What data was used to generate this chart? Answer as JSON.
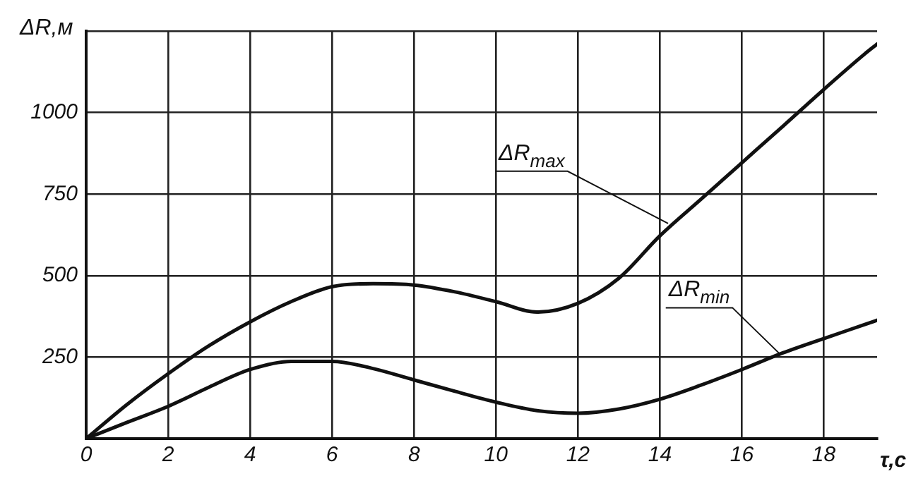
{
  "chart_data": {
    "type": "line",
    "xlabel": "τ,с",
    "ylabel": "ΔR,м",
    "xlim": [
      0,
      19.3
    ],
    "xticks": [
      0,
      2,
      4,
      6,
      8,
      10,
      12,
      14,
      16,
      18
    ],
    "ylim": [
      0,
      1250
    ],
    "yticks": [
      250,
      500,
      750,
      1000,
      {
        "value": 1250,
        "label": null
      }
    ],
    "grid": true,
    "legend": false,
    "marker": "none",
    "line_style": "solid",
    "series": [
      {
        "color": "#111111",
        "x": [
          0,
          1,
          2,
          3,
          4,
          5,
          6,
          7,
          8,
          9,
          10,
          11,
          12,
          13,
          14,
          15,
          16,
          17,
          18,
          19,
          19.3
        ],
        "values": [
          0,
          105,
          199,
          285,
          358,
          420,
          466,
          475,
          471,
          450,
          420,
          388,
          415,
          492,
          622,
          734,
          846,
          958,
          1071,
          1180,
          1210
        ]
      },
      {
        "color": "#111111",
        "x": [
          0,
          1,
          2,
          3,
          4,
          5,
          6,
          7,
          8,
          9,
          10,
          11,
          12,
          13,
          14,
          15,
          16,
          17,
          18,
          19,
          19.3
        ],
        "values": [
          0,
          50,
          99,
          158,
          212,
          237,
          237,
          215,
          180,
          145,
          112,
          86,
          78,
          91,
          121,
          164,
          212,
          263,
          307,
          350,
          363
        ]
      }
    ],
    "annotations": [
      {
        "text": "ΔR$_{max}$",
        "x": 14.2,
        "y": 660
      },
      {
        "text": "ΔR$_{min}$",
        "x": 16.9,
        "y": 263
      }
    ]
  }
}
